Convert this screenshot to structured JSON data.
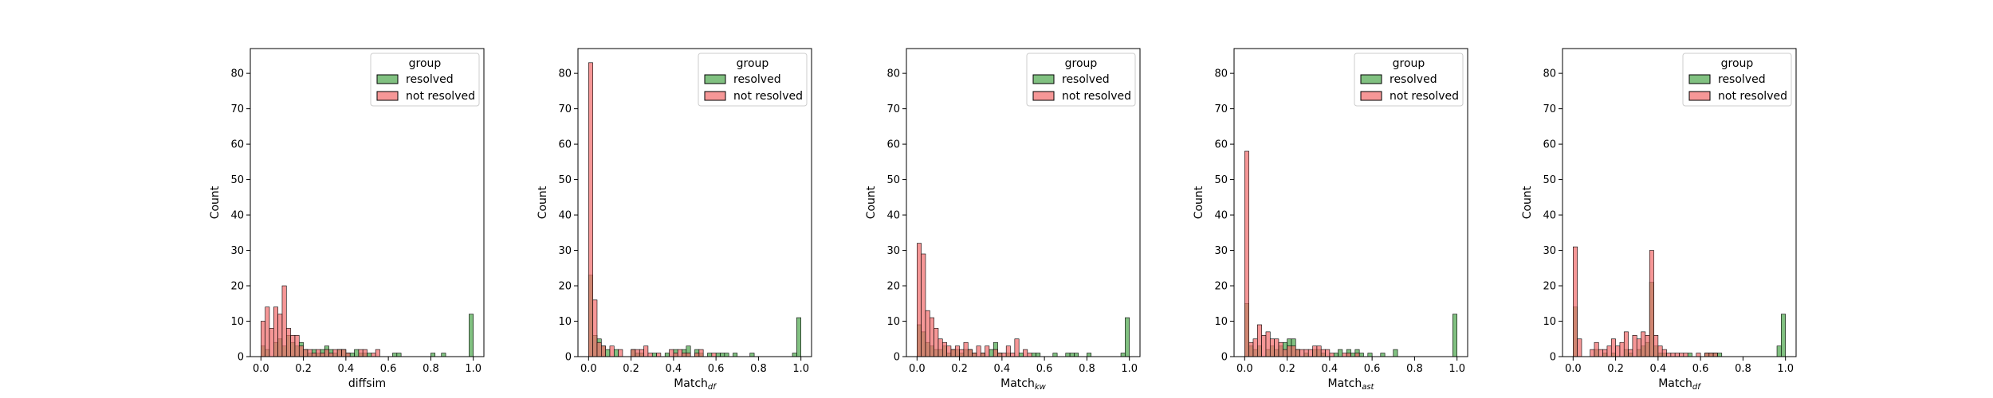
{
  "colors": {
    "resolved": "#4ca64c",
    "not_resolved": "#f26b6b",
    "edge": "#000000"
  },
  "chart_data": [
    {
      "type": "histogram",
      "xlabel": "diffsim",
      "xlabel_sub": "",
      "ylabel": "Count",
      "xlim": [
        -0.05,
        1.05
      ],
      "ylim": [
        0,
        87
      ],
      "xticks": [
        "0.0",
        "0.2",
        "0.4",
        "0.6",
        "0.8",
        "1.0"
      ],
      "yticks": [
        "0",
        "10",
        "20",
        "30",
        "40",
        "50",
        "60",
        "70",
        "80"
      ],
      "legend": {
        "title": "group",
        "entries": [
          "resolved",
          "not resolved"
        ],
        "position": "upper-right"
      },
      "bin_width": 0.02,
      "series": [
        {
          "name": "resolved",
          "bin_starts": [
            0.0,
            0.02,
            0.06,
            0.08,
            0.1,
            0.12,
            0.14,
            0.16,
            0.18,
            0.2,
            0.22,
            0.24,
            0.26,
            0.28,
            0.3,
            0.32,
            0.34,
            0.36,
            0.38,
            0.4,
            0.42,
            0.44,
            0.46,
            0.48,
            0.5,
            0.62,
            0.64,
            0.8,
            0.85,
            0.98
          ],
          "counts": [
            3,
            2,
            4,
            5,
            3,
            6,
            4,
            3,
            4,
            2,
            1,
            2,
            1,
            2,
            3,
            2,
            1,
            2,
            2,
            1,
            1,
            2,
            1,
            1,
            1,
            1,
            1,
            1,
            1,
            12
          ]
        },
        {
          "name": "not resolved",
          "bin_starts": [
            0.0,
            0.02,
            0.04,
            0.06,
            0.08,
            0.1,
            0.12,
            0.14,
            0.16,
            0.18,
            0.2,
            0.22,
            0.24,
            0.26,
            0.28,
            0.3,
            0.32,
            0.34,
            0.36,
            0.38,
            0.4,
            0.46,
            0.48,
            0.52,
            0.54
          ],
          "counts": [
            10,
            14,
            8,
            14,
            12,
            20,
            8,
            6,
            6,
            3,
            2,
            2,
            1,
            2,
            1,
            2,
            1,
            2,
            2,
            2,
            1,
            2,
            2,
            1,
            2
          ]
        }
      ]
    },
    {
      "type": "histogram",
      "xlabel": "Match",
      "xlabel_sub": "df",
      "ylabel": "Count",
      "xlim": [
        -0.05,
        1.05
      ],
      "ylim": [
        0,
        87
      ],
      "xticks": [
        "0.0",
        "0.2",
        "0.4",
        "0.6",
        "0.8",
        "1.0"
      ],
      "yticks": [
        "0",
        "10",
        "20",
        "30",
        "40",
        "50",
        "60",
        "70",
        "80"
      ],
      "legend": {
        "title": "group",
        "entries": [
          "resolved",
          "not resolved"
        ],
        "position": "upper-right"
      },
      "bin_width": 0.02,
      "series": [
        {
          "name": "resolved",
          "bin_starts": [
            0.0,
            0.02,
            0.04,
            0.06,
            0.08,
            0.12,
            0.2,
            0.22,
            0.24,
            0.3,
            0.36,
            0.4,
            0.44,
            0.46,
            0.5,
            0.52,
            0.56,
            0.6,
            0.62,
            0.64,
            0.68,
            0.76,
            0.96,
            0.98
          ],
          "counts": [
            23,
            6,
            5,
            3,
            2,
            2,
            2,
            1,
            1,
            1,
            1,
            2,
            2,
            3,
            2,
            1,
            1,
            1,
            1,
            1,
            1,
            1,
            1,
            11
          ]
        },
        {
          "name": "not resolved",
          "bin_starts": [
            0.0,
            0.02,
            0.04,
            0.06,
            0.1,
            0.14,
            0.2,
            0.22,
            0.24,
            0.26,
            0.28,
            0.32,
            0.38,
            0.4,
            0.42,
            0.44,
            0.46,
            0.5,
            0.52,
            0.58
          ],
          "counts": [
            83,
            16,
            4,
            3,
            3,
            2,
            2,
            2,
            2,
            3,
            1,
            1,
            2,
            1,
            2,
            1,
            1,
            1,
            2,
            1
          ]
        }
      ]
    },
    {
      "type": "histogram",
      "xlabel": "Match",
      "xlabel_sub": "kw",
      "ylabel": "Count",
      "xlim": [
        -0.05,
        1.05
      ],
      "ylim": [
        0,
        87
      ],
      "xticks": [
        "0.0",
        "0.2",
        "0.4",
        "0.6",
        "0.8",
        "1.0"
      ],
      "yticks": [
        "0",
        "10",
        "20",
        "30",
        "40",
        "50",
        "60",
        "70",
        "80"
      ],
      "legend": {
        "title": "group",
        "entries": [
          "resolved",
          "not resolved"
        ],
        "position": "upper-right"
      },
      "bin_width": 0.02,
      "series": [
        {
          "name": "resolved",
          "bin_starts": [
            0.0,
            0.02,
            0.04,
            0.06,
            0.08,
            0.1,
            0.12,
            0.14,
            0.16,
            0.18,
            0.2,
            0.22,
            0.24,
            0.26,
            0.3,
            0.34,
            0.36,
            0.38,
            0.42,
            0.48,
            0.54,
            0.56,
            0.64,
            0.7,
            0.72,
            0.74,
            0.8,
            0.96,
            0.98
          ],
          "counts": [
            9,
            7,
            4,
            3,
            2,
            2,
            3,
            1,
            2,
            2,
            1,
            2,
            2,
            1,
            1,
            2,
            4,
            1,
            1,
            1,
            1,
            1,
            1,
            1,
            1,
            1,
            1,
            1,
            11
          ]
        },
        {
          "name": "not resolved",
          "bin_starts": [
            0.0,
            0.02,
            0.04,
            0.06,
            0.08,
            0.1,
            0.12,
            0.14,
            0.16,
            0.18,
            0.2,
            0.22,
            0.24,
            0.26,
            0.28,
            0.3,
            0.32,
            0.36,
            0.38,
            0.4,
            0.42,
            0.44,
            0.46,
            0.5,
            0.52
          ],
          "counts": [
            32,
            29,
            13,
            11,
            8,
            5,
            4,
            3,
            2,
            3,
            2,
            4,
            2,
            1,
            3,
            1,
            3,
            2,
            1,
            1,
            3,
            1,
            5,
            2,
            1
          ]
        }
      ]
    },
    {
      "type": "histogram",
      "xlabel": "Match",
      "xlabel_sub": "ast",
      "ylabel": "Count",
      "xlim": [
        -0.05,
        1.05
      ],
      "ylim": [
        0,
        87
      ],
      "xticks": [
        "0.0",
        "0.2",
        "0.4",
        "0.6",
        "0.8",
        "1.0"
      ],
      "yticks": [
        "0",
        "10",
        "20",
        "30",
        "40",
        "50",
        "60",
        "70",
        "80"
      ],
      "legend": {
        "title": "group",
        "entries": [
          "resolved",
          "not resolved"
        ],
        "position": "upper-right"
      },
      "bin_width": 0.02,
      "series": [
        {
          "name": "resolved",
          "bin_starts": [
            0.0,
            0.02,
            0.04,
            0.06,
            0.1,
            0.12,
            0.14,
            0.16,
            0.18,
            0.2,
            0.22,
            0.24,
            0.28,
            0.32,
            0.34,
            0.36,
            0.42,
            0.44,
            0.48,
            0.5,
            0.52,
            0.54,
            0.58,
            0.64,
            0.7,
            0.98
          ],
          "counts": [
            15,
            3,
            2,
            3,
            2,
            3,
            2,
            3,
            4,
            5,
            5,
            2,
            1,
            2,
            2,
            1,
            1,
            2,
            2,
            1,
            2,
            1,
            1,
            1,
            2,
            12
          ]
        },
        {
          "name": "not resolved",
          "bin_starts": [
            0.0,
            0.02,
            0.04,
            0.06,
            0.08,
            0.1,
            0.12,
            0.14,
            0.16,
            0.18,
            0.2,
            0.22,
            0.24,
            0.26,
            0.28,
            0.3,
            0.32,
            0.34,
            0.36,
            0.38,
            0.4,
            0.46,
            0.48,
            0.52
          ],
          "counts": [
            58,
            4,
            5,
            9,
            6,
            7,
            5,
            5,
            4,
            2,
            3,
            3,
            2,
            2,
            2,
            2,
            3,
            3,
            2,
            2,
            1,
            1,
            1,
            1
          ]
        }
      ]
    },
    {
      "type": "histogram",
      "xlabel": "Match",
      "xlabel_sub": "df",
      "ylabel": "Count",
      "xlim": [
        -0.05,
        1.05
      ],
      "ylim": [
        0,
        87
      ],
      "xticks": [
        "0.0",
        "0.2",
        "0.4",
        "0.6",
        "0.8",
        "1.0"
      ],
      "yticks": [
        "0",
        "10",
        "20",
        "30",
        "40",
        "50",
        "60",
        "70",
        "80"
      ],
      "legend": {
        "title": "group",
        "entries": [
          "resolved",
          "not resolved"
        ],
        "position": "upper-right"
      },
      "bin_width": 0.02,
      "series": [
        {
          "name": "resolved",
          "bin_starts": [
            0.0,
            0.1,
            0.14,
            0.18,
            0.24,
            0.26,
            0.3,
            0.32,
            0.34,
            0.36,
            0.38,
            0.4,
            0.42,
            0.54,
            0.62,
            0.64,
            0.66,
            0.68,
            0.96,
            0.98
          ],
          "counts": [
            14,
            2,
            1,
            1,
            2,
            1,
            2,
            3,
            4,
            21,
            3,
            1,
            1,
            1,
            1,
            1,
            1,
            1,
            3,
            12
          ]
        },
        {
          "name": "not resolved",
          "bin_starts": [
            0.0,
            0.02,
            0.08,
            0.1,
            0.12,
            0.14,
            0.16,
            0.18,
            0.2,
            0.22,
            0.24,
            0.26,
            0.28,
            0.3,
            0.32,
            0.34,
            0.36,
            0.38,
            0.4,
            0.42,
            0.44,
            0.46,
            0.48,
            0.5,
            0.52,
            0.58,
            0.62,
            0.64,
            0.66
          ],
          "counts": [
            31,
            5,
            2,
            4,
            2,
            2,
            3,
            5,
            3,
            4,
            7,
            2,
            6,
            5,
            7,
            6,
            30,
            6,
            3,
            2,
            1,
            1,
            1,
            1,
            1,
            1,
            1,
            1,
            1
          ]
        }
      ]
    }
  ]
}
